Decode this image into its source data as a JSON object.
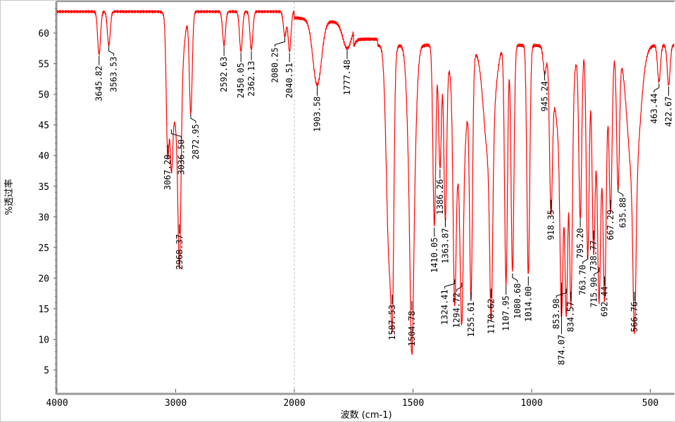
{
  "chart_data": {
    "type": "line",
    "xlabel": "波数 (cm-1)",
    "ylabel": "%透过率",
    "xlim": [
      4000,
      400
    ],
    "x_scale_break": 2000,
    "ylim": [
      1,
      65
    ],
    "x_ticks": [
      4000,
      3000,
      2000,
      1500,
      1000,
      500
    ],
    "y_ticks": [
      5,
      10,
      15,
      20,
      25,
      30,
      35,
      40,
      45,
      50,
      55,
      60
    ],
    "grid": false,
    "line_color": "#ff0000",
    "peaks": [
      {
        "label": "3645.82",
        "x": 3645.82,
        "y": 56.5
      },
      {
        "label": "3563.53",
        "x": 3563.53,
        "y": 58
      },
      {
        "label": "3067.20",
        "x": 3067.2,
        "y": 42
      },
      {
        "label": "3036.50",
        "x": 3036.5,
        "y": 44.5
      },
      {
        "label": "2968.37",
        "x": 2968.37,
        "y": 29
      },
      {
        "label": "2872.95",
        "x": 2872.95,
        "y": 47
      },
      {
        "label": "2592.63",
        "x": 2592.63,
        "y": 58
      },
      {
        "label": "2450.05",
        "x": 2450.05,
        "y": 57
      },
      {
        "label": "2362.13",
        "x": 2362.13,
        "y": 57.3
      },
      {
        "label": "2080.25",
        "x": 2080.25,
        "y": 59.5
      },
      {
        "label": "2040.51",
        "x": 2040.51,
        "y": 57
      },
      {
        "label": "1903.58",
        "x": 1903.58,
        "y": 51.5
      },
      {
        "label": "1777.48",
        "x": 1777.48,
        "y": 57.5
      },
      {
        "label": "1587.53",
        "x": 1587.53,
        "y": 17.5
      },
      {
        "label": "1504.78",
        "x": 1504.78,
        "y": 16.5
      },
      {
        "label": "1410.05",
        "x": 1410.05,
        "y": 28.5
      },
      {
        "label": "1386.26",
        "x": 1386.26,
        "y": 38
      },
      {
        "label": "1363.87",
        "x": 1363.87,
        "y": 30
      },
      {
        "label": "1324.41",
        "x": 1324.41,
        "y": 20
      },
      {
        "label": "1294.72",
        "x": 1294.72,
        "y": 19.5
      },
      {
        "label": "1255.61",
        "x": 1255.61,
        "y": 18
      },
      {
        "label": "1170.62",
        "x": 1170.62,
        "y": 18.5
      },
      {
        "label": "1107.95",
        "x": 1107.95,
        "y": 19
      },
      {
        "label": "1080.68",
        "x": 1080.68,
        "y": 21
      },
      {
        "label": "1014.00",
        "x": 1014.0,
        "y": 20.5
      },
      {
        "label": "945.24",
        "x": 945.24,
        "y": 54
      },
      {
        "label": "918.35",
        "x": 918.35,
        "y": 33
      },
      {
        "label": "874.07",
        "x": 874.07,
        "y": 19.5
      },
      {
        "label": "853.98",
        "x": 853.98,
        "y": 18.5
      },
      {
        "label": "834.57",
        "x": 834.57,
        "y": 18
      },
      {
        "label": "795.20",
        "x": 795.2,
        "y": 30
      },
      {
        "label": "763.70",
        "x": 763.7,
        "y": 24
      },
      {
        "label": "738.77",
        "x": 738.77,
        "y": 28
      },
      {
        "label": "715.90",
        "x": 715.9,
        "y": 22
      },
      {
        "label": "692.44",
        "x": 692.44,
        "y": 20.5
      },
      {
        "label": "667.29",
        "x": 667.29,
        "y": 33
      },
      {
        "label": "635.88",
        "x": 635.88,
        "y": 35
      },
      {
        "label": "566.76",
        "x": 566.76,
        "y": 18
      },
      {
        "label": "463.44",
        "x": 463.44,
        "y": 52
      },
      {
        "label": "422.67",
        "x": 422.67,
        "y": 51.5
      }
    ]
  }
}
